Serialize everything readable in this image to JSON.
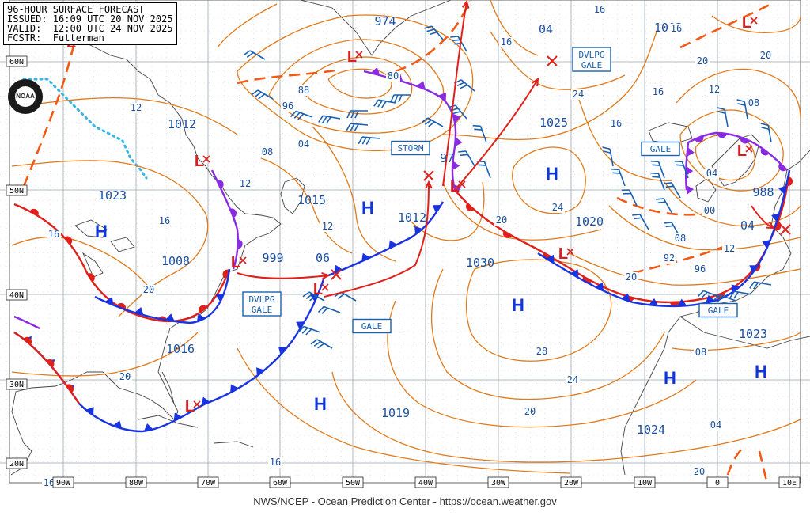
{
  "header": {
    "line1": "96-HOUR SURFACE FORECAST",
    "line2": "ISSUED: 16:09 UTC 20 NOV 2025",
    "line3": "VALID:  12:00 UTC 24 NOV 2025",
    "line4": "FCSTR:  Futterman"
  },
  "footer": "NWS/NCEP - Ocean Prediction Center - https://ocean.weather.gov",
  "logo_text": "NOAA",
  "colors": {
    "isobar": "#e07a1a",
    "high": "#1036d8",
    "low": "#d81e1e",
    "warm_front": "#e0201a",
    "cold_front": "#1a33e0",
    "occluded_front": "#8a2be2",
    "trough": "#f05a14",
    "ice_edge": "#35b6e8",
    "wind_barb": "#1a60b0",
    "label_text": "#1a4f9e"
  },
  "lat_labels": [
    "60N",
    "50N",
    "40N",
    "30N",
    "20N"
  ],
  "lon_labels": [
    "90W",
    "80W",
    "70W",
    "60W",
    "50W",
    "40W",
    "30W",
    "20W",
    "10W",
    "0",
    "10E"
  ],
  "pressure_centers": [
    {
      "type": "H",
      "value": "1023"
    },
    {
      "type": "L",
      "value": "1012"
    },
    {
      "type": "H",
      "value": "1008"
    },
    {
      "type": "H",
      "value": "1016"
    },
    {
      "type": "L",
      "value": "974"
    },
    {
      "type": "L",
      "value": "97"
    },
    {
      "type": "L",
      "value": "999"
    },
    {
      "type": "L",
      "value": "06"
    },
    {
      "type": "H",
      "value": "1015"
    },
    {
      "type": "L",
      "value": "1012"
    },
    {
      "type": "H",
      "value": "1025"
    },
    {
      "type": "H",
      "value": "1030"
    },
    {
      "type": "L",
      "value": "1020"
    },
    {
      "type": "L",
      "value": "988"
    },
    {
      "type": "L",
      "value": "04"
    },
    {
      "type": "L",
      "value": "1003"
    },
    {
      "type": "H",
      "value": "1023"
    },
    {
      "type": "H",
      "value": "1024"
    },
    {
      "type": "H",
      "value": "1019"
    },
    {
      "type": "L",
      "value": "04"
    }
  ],
  "warning_labels": [
    {
      "line1": "DVLPG",
      "line2": "GALE"
    },
    {
      "line1": "STORM",
      "line2": ""
    },
    {
      "line1": "DVLPG",
      "line2": "GALE"
    },
    {
      "line1": "GALE",
      "line2": ""
    },
    {
      "line1": "GALE",
      "line2": ""
    },
    {
      "line1": "GALE",
      "line2": ""
    }
  ],
  "isobar_labels": [
    "12",
    "16",
    "20",
    "16",
    "20",
    "12",
    "08",
    "04",
    "88",
    "96",
    "80",
    "16",
    "12",
    "20",
    "24",
    "28",
    "24",
    "20",
    "16",
    "20",
    "16",
    "12",
    "08",
    "04",
    "00",
    "92",
    "96",
    "12",
    "08",
    "04",
    "20",
    "20",
    "16",
    "16",
    "16",
    "24",
    "20",
    "16",
    "08"
  ]
}
